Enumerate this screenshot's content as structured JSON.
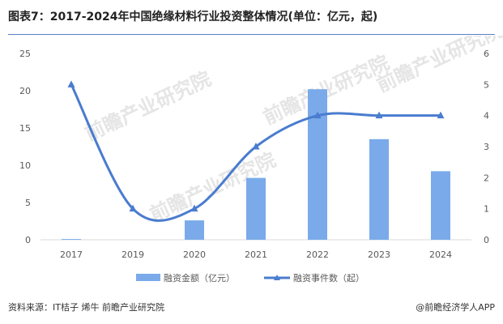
{
  "title": "图表7：2017-2024年中国绝缘材料行业投资整体情况(单位：亿元，起)",
  "source": "资料来源：IT桔子 烯牛 前瞻产业研究院",
  "brand": "@前瞻经济学人APP",
  "watermark": "前瞻产业研究院",
  "chart_data": {
    "type": "bar",
    "categories": [
      "2017",
      "2019",
      "2020",
      "2021",
      "2022",
      "2023",
      "2024"
    ],
    "series": [
      {
        "name": "融资金额（亿元）",
        "type": "bar",
        "axis": "left",
        "color": "#7aaaea",
        "values": [
          0.1,
          0,
          2.6,
          8.3,
          20.2,
          13.5,
          9.2
        ]
      },
      {
        "name": "融资事件数（起）",
        "type": "line",
        "axis": "right",
        "color": "#4a7ccf",
        "values": [
          5,
          1,
          1,
          3,
          4,
          4,
          4
        ]
      }
    ],
    "y_left": {
      "min": 0,
      "max": 25,
      "ticks": [
        0,
        5,
        10,
        15,
        20,
        25
      ]
    },
    "y_right": {
      "min": 0,
      "max": 6,
      "ticks": [
        0,
        1,
        2,
        3,
        4,
        5,
        6
      ]
    },
    "legend_position": "bottom",
    "grid": false
  }
}
